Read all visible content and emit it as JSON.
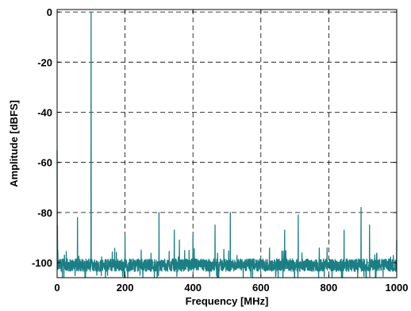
{
  "chart_data": {
    "type": "line",
    "title": "",
    "xlabel": "Frequency [MHz]",
    "ylabel": "Amplitude [dBFS]",
    "xlim": [
      0,
      1000
    ],
    "ylim": [
      -106,
      1
    ],
    "x_ticks": [
      0,
      200,
      400,
      600,
      800,
      1000
    ],
    "y_ticks": [
      0,
      -20,
      -40,
      -60,
      -80,
      -100
    ],
    "x_tick_labels": [
      "0",
      "200",
      "400",
      "600",
      "800",
      "1000"
    ],
    "y_tick_labels": [
      "0",
      "-20",
      "-40",
      "-60",
      "-80",
      "-100"
    ],
    "grid": true,
    "grid_style": "dashed",
    "line_color": "#1a7f85",
    "noise_floor_db": -101,
    "series": [
      {
        "x": [
          0,
          1,
          2,
          60,
          100,
          200,
          300,
          345,
          360,
          400,
          465,
          510,
          670,
          710,
          845,
          895,
          920,
          1000
        ],
        "y": [
          -55,
          -85,
          -95,
          -82,
          0,
          -89,
          -80,
          -87,
          -91,
          -89,
          -85,
          -80,
          -87,
          -81,
          -87,
          -78,
          -85,
          -91
        ]
      }
    ]
  }
}
